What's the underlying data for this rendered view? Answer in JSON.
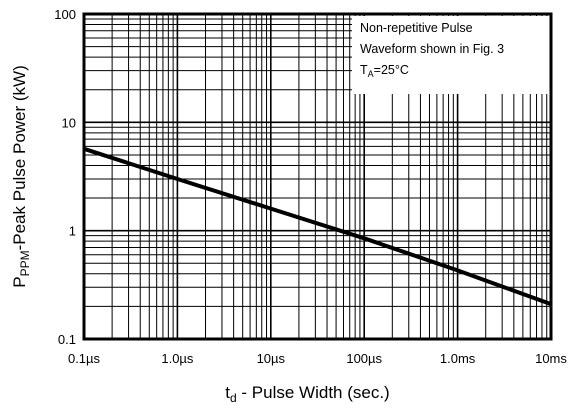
{
  "chart_data": {
    "type": "line",
    "xlabel": "t",
    "xlabel_sub": "d",
    "xlabel_rest": " - Pulse Width (sec.)",
    "ylabel": "P",
    "ylabel_sub": "PPM",
    "ylabel_rest": "-Peak Pulse Power (kW)",
    "x_scale": "log",
    "y_scale": "log",
    "xlim": [
      1e-07,
      0.01
    ],
    "ylim": [
      0.1,
      100
    ],
    "x_ticks": [
      {
        "value": 1e-07,
        "label": "0.1µs"
      },
      {
        "value": 1e-06,
        "label": "1.0µs"
      },
      {
        "value": 1e-05,
        "label": "10µs"
      },
      {
        "value": 0.0001,
        "label": "100µs"
      },
      {
        "value": 0.001,
        "label": "1.0ms"
      },
      {
        "value": 0.01,
        "label": "10ms"
      }
    ],
    "y_ticks": [
      {
        "value": 0.1,
        "label": "0.1"
      },
      {
        "value": 1,
        "label": "1"
      },
      {
        "value": 10,
        "label": "10"
      },
      {
        "value": 100,
        "label": "100"
      }
    ],
    "grid": true,
    "annotation": {
      "lines": [
        "Non-repetitive Pulse",
        "Waveform shown in Fig. 3"
      ],
      "temp_prefix": "T",
      "temp_sub": "A",
      "temp_value": "=25°C",
      "placement": "top-right"
    },
    "series": [
      {
        "x": [
          1e-07,
          1e-06,
          1e-05,
          0.0001,
          0.001,
          0.01
        ],
        "y": [
          5.7,
          3.0,
          1.6,
          0.85,
          0.43,
          0.21
        ]
      }
    ]
  }
}
